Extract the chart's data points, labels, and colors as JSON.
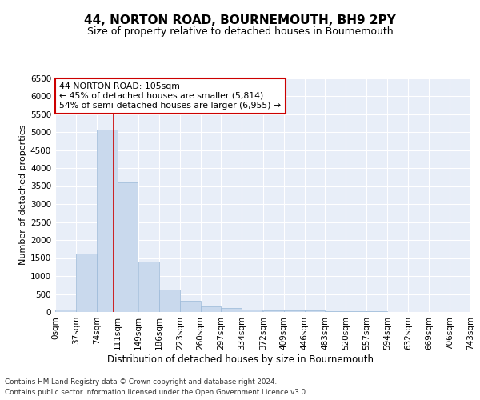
{
  "title": "44, NORTON ROAD, BOURNEMOUTH, BH9 2PY",
  "subtitle": "Size of property relative to detached houses in Bournemouth",
  "xlabel": "Distribution of detached houses by size in Bournemouth",
  "ylabel": "Number of detached properties",
  "bar_color": "#c9d9ed",
  "bar_edge_color": "#9ab8d8",
  "vline_x": 105,
  "vline_color": "#cc0000",
  "annotation_title": "44 NORTON ROAD: 105sqm",
  "annotation_line1": "← 45% of detached houses are smaller (5,814)",
  "annotation_line2": "54% of semi-detached houses are larger (6,955) →",
  "annotation_box_color": "#ffffff",
  "annotation_box_edge": "#cc0000",
  "footer_line1": "Contains HM Land Registry data © Crown copyright and database right 2024.",
  "footer_line2": "Contains public sector information licensed under the Open Government Licence v3.0.",
  "bins": [
    0,
    37,
    74,
    111,
    149,
    186,
    223,
    260,
    297,
    334,
    372,
    409,
    446,
    483,
    520,
    557,
    594,
    632,
    669,
    706,
    743
  ],
  "counts": [
    75,
    1625,
    5075,
    3600,
    1400,
    625,
    310,
    150,
    110,
    70,
    55,
    50,
    40,
    25,
    20,
    15,
    10,
    8,
    6,
    5
  ],
  "ylim": [
    0,
    6500
  ],
  "yticks": [
    0,
    500,
    1000,
    1500,
    2000,
    2500,
    3000,
    3500,
    4000,
    4500,
    5000,
    5500,
    6000,
    6500
  ],
  "background_color": "#ffffff",
  "plot_background": "#e8eef8",
  "grid_color": "#ffffff",
  "tick_label_size": 7.5,
  "ylabel_size": 8,
  "title_size": 11,
  "subtitle_size": 9
}
